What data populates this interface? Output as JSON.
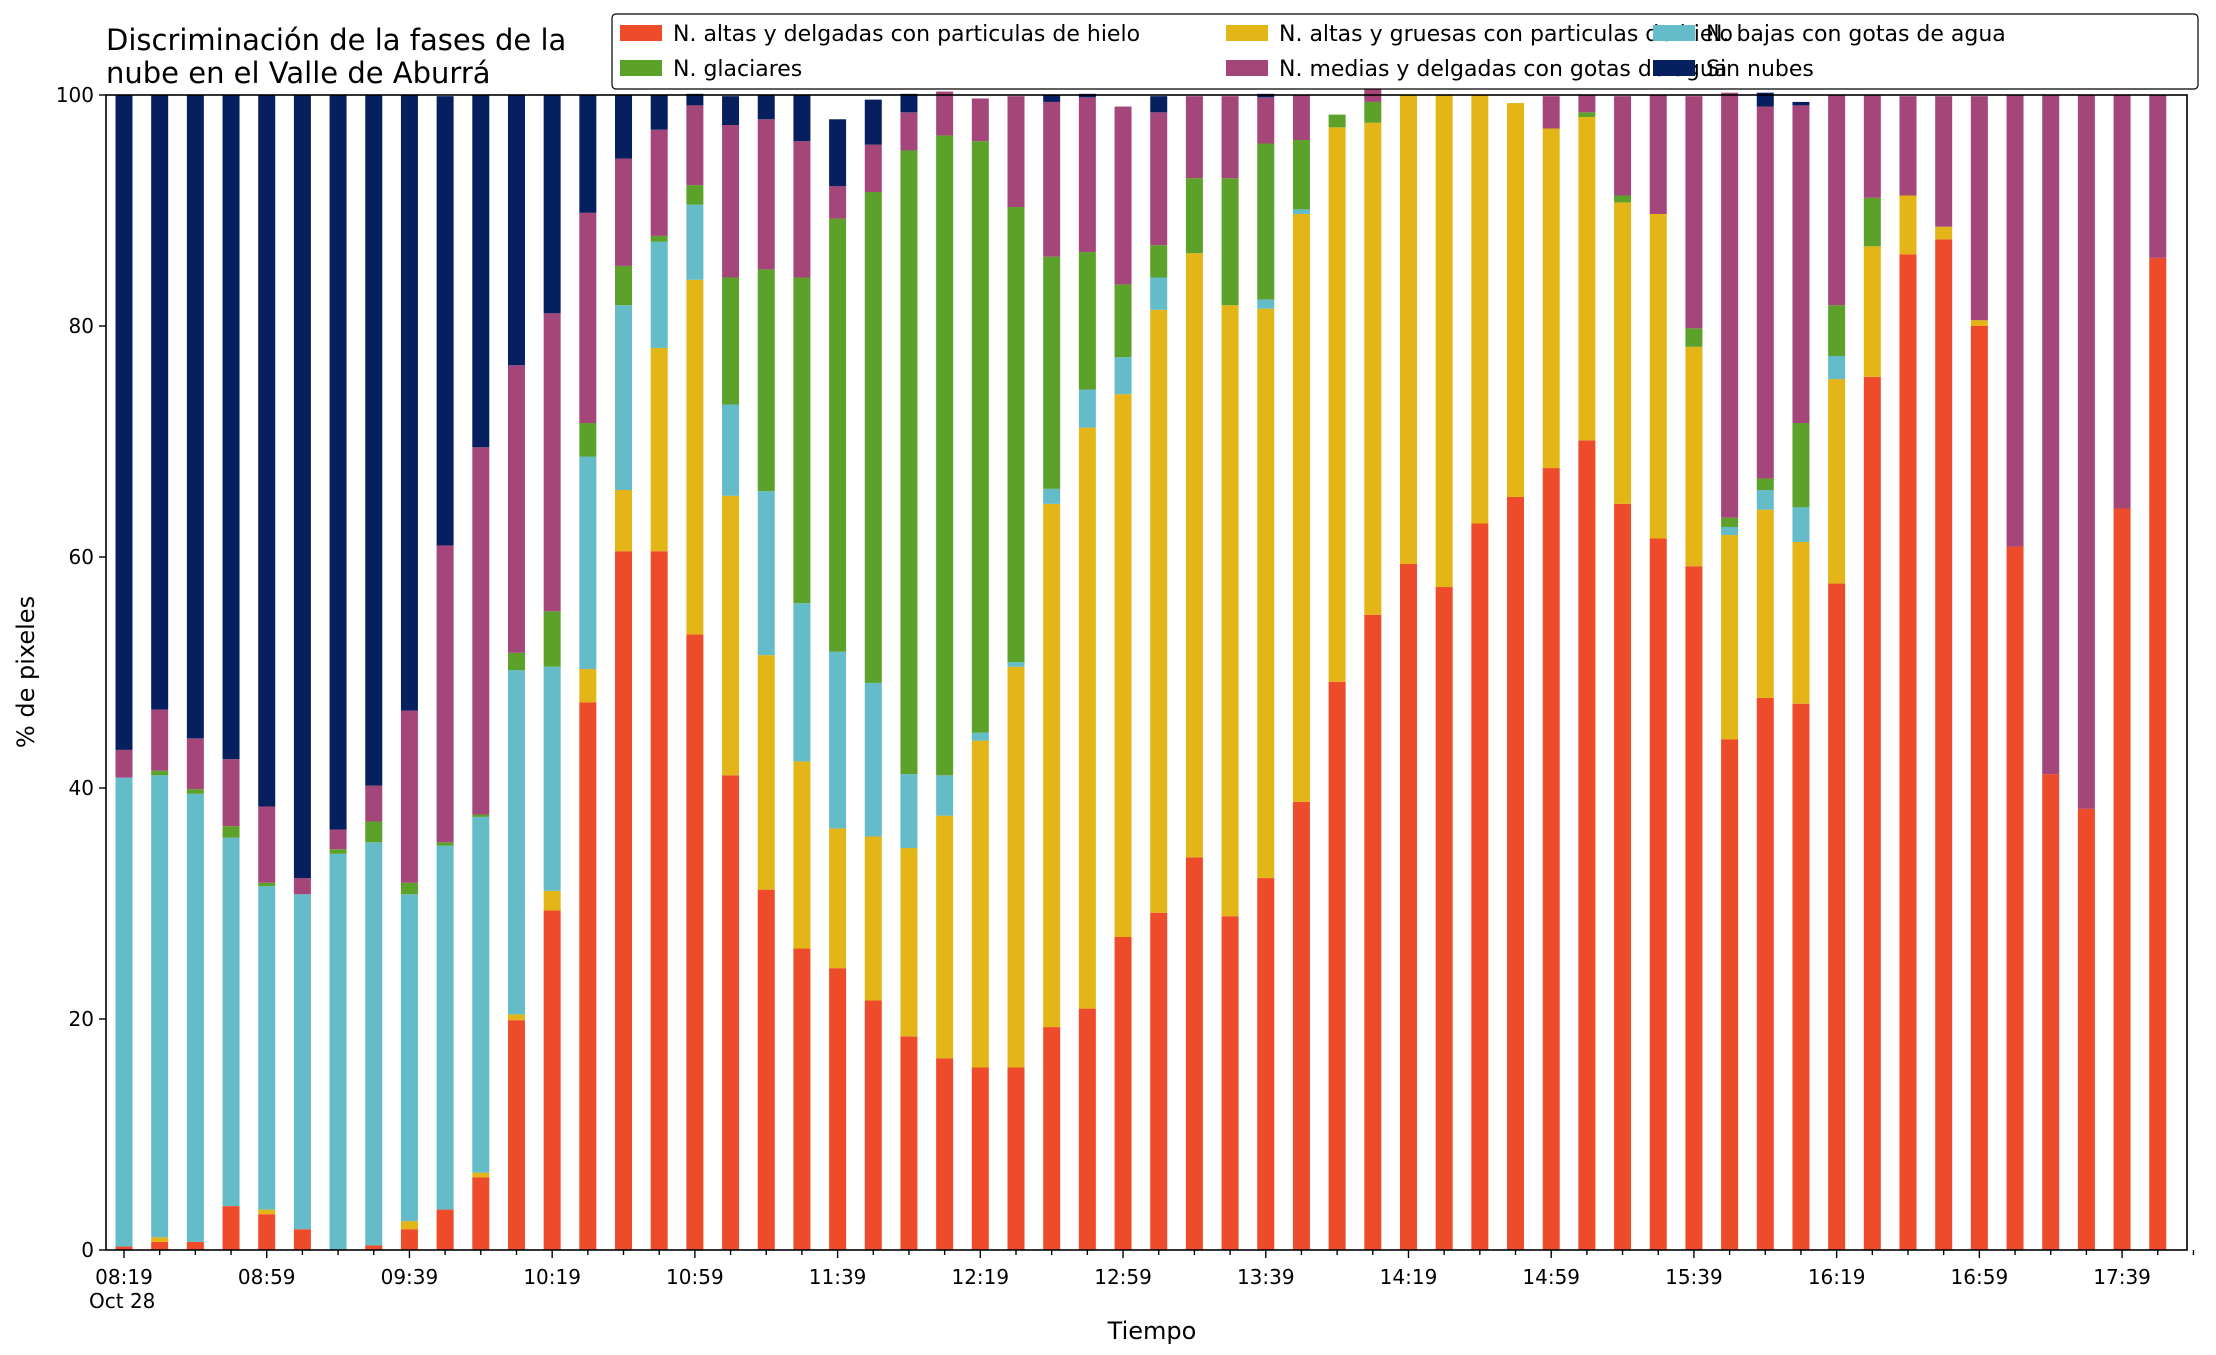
{
  "chart_data": {
    "type": "bar",
    "stacked": true,
    "title": [
      "Discriminación de la fases de la",
      "nube en el Valle de Aburrá"
    ],
    "xlabel": "Tiempo",
    "ylabel": "% de pixeles",
    "ylim": [
      0,
      100
    ],
    "yticks": [
      0,
      20,
      40,
      60,
      80,
      100
    ],
    "xtick_labels": [
      "08:19",
      "08:59",
      "09:39",
      "10:19",
      "10:59",
      "11:39",
      "12:19",
      "12:59",
      "13:39",
      "14:19",
      "14:59",
      "15:39",
      "16:19",
      "16:59",
      "17:39"
    ],
    "xtick_sublabel": "Oct 28",
    "grid": false,
    "legend_position": "top, above plot",
    "categories": [
      "08:19",
      "08:29",
      "08:39",
      "08:49",
      "08:59",
      "09:09",
      "09:19",
      "09:29",
      "09:39",
      "09:49",
      "09:59",
      "10:09",
      "10:19",
      "10:29",
      "10:39",
      "10:49",
      "10:59",
      "11:09",
      "11:19",
      "11:29",
      "11:39",
      "11:49",
      "11:59",
      "12:09",
      "12:19",
      "12:29",
      "12:39",
      "12:49",
      "12:59",
      "13:09",
      "13:19",
      "13:29",
      "13:39",
      "13:49",
      "13:59",
      "14:09",
      "14:19",
      "14:29",
      "14:39",
      "14:49",
      "14:59",
      "15:09",
      "15:19",
      "15:29",
      "15:39",
      "15:49",
      "15:59",
      "16:09",
      "16:19",
      "16:29",
      "16:39",
      "16:49",
      "16:59",
      "17:09",
      "17:19",
      "17:29",
      "17:39",
      "17:49"
    ],
    "series": [
      {
        "name": "N. altas y delgadas con particulas de hielo",
        "color": "#ee4b2b",
        "values": [
          0.3,
          0.7,
          0.7,
          3.8,
          3.1,
          1.8,
          0,
          0.4,
          1.8,
          3.5,
          6.3,
          19.9,
          29.4,
          47.4,
          60.5,
          60.5,
          53.3,
          41.1,
          31.2,
          26.1,
          24.4,
          21.6,
          18.5,
          16.6,
          15.8,
          15.8,
          19.3,
          20.9,
          27.1,
          29.2,
          34.0,
          28.9,
          32.2,
          38.8,
          49.2,
          55.0,
          59.4,
          57.4,
          62.9,
          65.2,
          67.7,
          70.1,
          64.6,
          61.6,
          59.2,
          44.2,
          47.8,
          47.3,
          57.7,
          75.6,
          86.2,
          87.5,
          80.0,
          60.9,
          41.2,
          38.2,
          64.2,
          85.9
        ]
      },
      {
        "name": "N. altas y gruesas con particulas de hielo",
        "color": "#e3b516",
        "values": [
          0,
          0.4,
          0,
          0,
          0.4,
          0,
          0,
          0,
          0.7,
          0,
          0.4,
          0.5,
          1.7,
          2.9,
          5.3,
          17.6,
          30.7,
          24.2,
          20.3,
          16.2,
          12.1,
          14.2,
          16.3,
          21.0,
          28.3,
          34.7,
          45.3,
          50.3,
          47.0,
          52.2,
          52.3,
          52.9,
          49.3,
          50.9,
          48.0,
          42.6,
          40.6,
          42.6,
          37.1,
          34.1,
          29.4,
          28.0,
          26.1,
          28.1,
          19.0,
          17.7,
          16.3,
          14.0,
          17.7,
          11.3,
          5.1,
          1.1,
          0.5,
          0,
          0,
          0,
          0,
          0
        ]
      },
      {
        "name": "N. bajas con gotas de agua",
        "color": "#63bcc8",
        "values": [
          40.6,
          40.0,
          38.8,
          31.9,
          28.0,
          29.0,
          34.3,
          34.9,
          28.3,
          31.5,
          30.8,
          29.8,
          19.4,
          18.4,
          16.0,
          9.2,
          6.5,
          7.9,
          14.2,
          13.7,
          15.3,
          13.3,
          6.4,
          3.5,
          0.7,
          0.4,
          1.3,
          3.3,
          3.2,
          2.8,
          0,
          0,
          0.8,
          0.4,
          0,
          0,
          0,
          0,
          0,
          0,
          0,
          0,
          0,
          0,
          0,
          0.7,
          1.7,
          3.0,
          2.0,
          0,
          0,
          0,
          0,
          0,
          0,
          0,
          0,
          0
        ]
      },
      {
        "name": "N. glaciares",
        "color": "#5ba12a",
        "values": [
          0,
          0.4,
          0.4,
          1.0,
          0.3,
          0,
          0.4,
          1.8,
          1.0,
          0.3,
          0.2,
          1.5,
          4.8,
          2.9,
          3.4,
          0.5,
          1.7,
          11.0,
          19.2,
          28.2,
          37.5,
          42.5,
          54.0,
          55.4,
          51.2,
          39.4,
          20.1,
          11.9,
          6.3,
          2.8,
          6.5,
          11.0,
          13.5,
          6.0,
          1.1,
          1.8,
          0,
          0,
          0,
          0,
          0,
          0.4,
          0.6,
          0,
          1.6,
          0.8,
          1.0,
          7.3,
          4.4,
          4.2,
          0,
          0,
          0,
          0,
          0,
          0,
          0,
          0
        ]
      },
      {
        "name": "N. medias y delgadas con gotas de agua",
        "color": "#a5467b",
        "values": [
          2.4,
          5.3,
          4.4,
          5.8,
          6.6,
          1.4,
          1.7,
          3.1,
          14.9,
          25.7,
          31.8,
          24.9,
          25.8,
          18.2,
          9.3,
          9.2,
          6.9,
          13.2,
          13.0,
          11.8,
          2.8,
          4.1,
          3.3,
          3.8,
          3.7,
          9.6,
          13.4,
          13.4,
          15.4,
          11.5,
          7.1,
          7.1,
          4.0,
          3.9,
          0,
          1.1,
          0,
          0,
          0,
          0,
          2.8,
          1.5,
          8.6,
          10.3,
          20.1,
          36.8,
          32.2,
          27.5,
          18.2,
          8.9,
          8.6,
          11.3,
          19.4,
          39.1,
          58.8,
          61.8,
          35.8,
          14.1
        ]
      },
      {
        "name": "Sin nubes",
        "color": "#061f5f",
        "values": [
          56.7,
          53.2,
          55.7,
          57.5,
          61.6,
          67.8,
          63.6,
          59.8,
          53.3,
          38.9,
          30.5,
          23.4,
          18.9,
          10.2,
          5.5,
          3.0,
          1.0,
          2.5,
          2.1,
          4.0,
          5.8,
          3.9,
          1.6,
          0,
          0,
          0,
          0.6,
          0.3,
          0,
          1.4,
          0,
          0,
          0.3,
          0,
          0,
          0,
          0,
          0,
          0,
          0,
          0,
          0,
          0,
          0,
          0,
          0,
          1.2,
          0.3,
          0,
          0,
          0,
          0,
          0,
          0,
          0,
          0,
          0,
          0
        ]
      }
    ]
  }
}
